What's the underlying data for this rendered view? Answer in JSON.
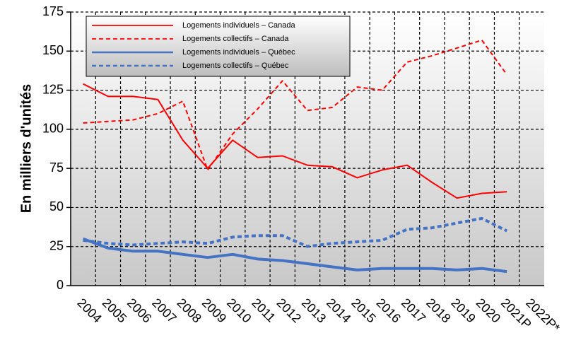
{
  "chart_data": {
    "type": "line",
    "y_label": "En milliers d'unités",
    "categories": [
      "2004",
      "2005",
      "2006",
      "2007",
      "2008",
      "2009",
      "2010",
      "2011",
      "2012",
      "2013",
      "2014",
      "2015",
      "2016",
      "2017",
      "2018",
      "2019",
      "2020",
      "2021P",
      "2022P*"
    ],
    "series": [
      {
        "name": "Logements individuels – Canada",
        "color": "#ff0000",
        "dash": false,
        "width": 2,
        "values": [
          129,
          121,
          121,
          119,
          93,
          75,
          93,
          82,
          83,
          77,
          76,
          69,
          74,
          77,
          66,
          56,
          59,
          60,
          null
        ]
      },
      {
        "name": "Logements collectifs – Canada",
        "color": "#ff0000",
        "dash": true,
        "width": 2,
        "values": [
          104,
          105,
          106,
          110,
          118,
          74,
          97,
          113,
          131,
          112,
          114,
          127,
          125,
          143,
          147,
          152,
          157,
          135,
          null
        ]
      },
      {
        "name": "Logements individuels – Québec",
        "color": "#4472c4",
        "dash": false,
        "width": 4,
        "values": [
          30,
          24,
          22,
          22,
          20,
          18,
          20,
          17,
          16,
          14,
          12,
          10,
          11,
          11,
          11,
          10,
          11,
          9,
          null
        ]
      },
      {
        "name": "Logements collectifs – Québec",
        "color": "#4472c4",
        "dash": true,
        "width": 4,
        "values": [
          29,
          27,
          26,
          27,
          28,
          27,
          31,
          32,
          32,
          25,
          27,
          28,
          29,
          36,
          37,
          40,
          43,
          35,
          null
        ]
      }
    ],
    "ylim": [
      0,
      175
    ],
    "yticks": [
      0,
      25,
      50,
      75,
      100,
      125,
      150,
      175
    ],
    "grid": true
  }
}
